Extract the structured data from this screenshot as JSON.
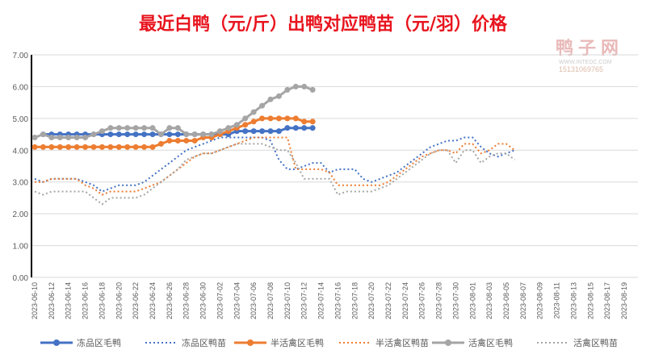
{
  "chart_data": {
    "type": "line",
    "title": "最近白鸭（元/斤）出鸭对应鸭苗（元/羽）价格",
    "watermark": {
      "name": "鸭子网",
      "site": "WWW.INTEDC.COM",
      "phone": "15131069765"
    },
    "ylim": [
      0,
      7
    ],
    "yticks": [
      "0.00",
      "1.00",
      "2.00",
      "3.00",
      "4.00",
      "5.00",
      "6.00",
      "7.00"
    ],
    "x_start": "2023-06-10",
    "x_days": 70,
    "xticks": [
      "2023-06-10",
      "2023-06-12",
      "2023-06-14",
      "2023-06-16",
      "2023-06-18",
      "2023-06-20",
      "2023-06-22",
      "2023-06-24",
      "2023-06-26",
      "2023-06-28",
      "2023-06-30",
      "2023-07-02",
      "2023-07-04",
      "2023-07-06",
      "2023-07-08",
      "2023-07-10",
      "2023-07-12",
      "2023-07-14",
      "2023-07-16",
      "2023-07-18",
      "2023-07-20",
      "2023-07-22",
      "2023-07-24",
      "2023-07-26",
      "2023-07-28",
      "2023-07-30",
      "2023-08-01",
      "2023-08-03",
      "2023-08-05",
      "2023-08-07",
      "2023-08-09",
      "2023-08-11",
      "2023-08-13",
      "2023-08-15",
      "2023-08-17",
      "2023-08-19"
    ],
    "grid": true,
    "legend": "bottom",
    "series": [
      {
        "name": "冻品区毛鸭",
        "color": "#4472c4",
        "style": "solid",
        "values": [
          null,
          4.5,
          4.5,
          4.5,
          4.5,
          4.5,
          4.5,
          4.5,
          4.5,
          4.5,
          4.5,
          4.5,
          4.5,
          4.5,
          4.5,
          4.5,
          4.5,
          4.5,
          4.5,
          4.5,
          4.5,
          4.5,
          4.5,
          4.5,
          4.6,
          4.6,
          4.6,
          4.6,
          4.6,
          4.6,
          4.7,
          4.7,
          4.7,
          4.7
        ]
      },
      {
        "name": "冻品区鸭苗",
        "color": "#4472c4",
        "style": "dot",
        "values": [
          3.1,
          3.0,
          3.1,
          3.1,
          3.1,
          3.1,
          3.0,
          2.9,
          2.7,
          2.8,
          2.9,
          2.9,
          2.9,
          3.0,
          3.2,
          3.4,
          3.6,
          3.8,
          4.0,
          4.1,
          4.2,
          4.3,
          4.4,
          4.4,
          4.4,
          4.4,
          4.4,
          4.4,
          4.3,
          3.7,
          3.4,
          3.4,
          3.5,
          3.6,
          3.6,
          3.3,
          3.4,
          3.4,
          3.4,
          3.1,
          3.0,
          3.1,
          3.2,
          3.3,
          3.5,
          3.7,
          3.9,
          4.1,
          4.2,
          4.3,
          4.3,
          4.4,
          4.4,
          4.1,
          3.9,
          3.8,
          3.9,
          4.0
        ]
      },
      {
        "name": "半活禽区毛鸭",
        "color": "#ed7d31",
        "style": "solid",
        "values": [
          4.1,
          4.1,
          4.1,
          4.1,
          4.1,
          4.1,
          4.1,
          4.1,
          4.1,
          4.1,
          4.1,
          4.1,
          4.1,
          4.1,
          4.1,
          4.2,
          4.3,
          4.3,
          4.3,
          4.3,
          4.4,
          4.4,
          4.5,
          4.6,
          4.7,
          4.8,
          4.9,
          5.0,
          5.0,
          5.0,
          5.0,
          5.0,
          4.9,
          4.9
        ]
      },
      {
        "name": "半活禽区鸭苗",
        "color": "#ed7d31",
        "style": "dot",
        "values": [
          3.0,
          3.0,
          3.1,
          3.1,
          3.1,
          3.1,
          2.9,
          2.8,
          2.6,
          2.7,
          2.7,
          2.7,
          2.7,
          2.8,
          2.9,
          3.0,
          3.2,
          3.4,
          3.6,
          3.8,
          3.9,
          3.9,
          4.0,
          4.1,
          4.2,
          4.3,
          4.4,
          4.4,
          4.4,
          4.4,
          4.4,
          3.4,
          3.4,
          3.4,
          3.4,
          3.3,
          2.9,
          2.9,
          2.9,
          2.9,
          2.9,
          2.9,
          3.0,
          3.2,
          3.4,
          3.6,
          3.8,
          3.9,
          4.0,
          4.0,
          3.9,
          4.2,
          4.2,
          3.9,
          4.0,
          4.2,
          4.2,
          4.0
        ]
      },
      {
        "name": "活禽区毛鸭",
        "color": "#a5a5a5",
        "style": "solid",
        "values": [
          4.4,
          4.5,
          4.4,
          4.4,
          4.4,
          4.4,
          4.4,
          4.5,
          4.6,
          4.7,
          4.7,
          4.7,
          4.7,
          4.7,
          4.7,
          4.5,
          4.7,
          4.7,
          4.5,
          4.5,
          4.5,
          4.5,
          4.6,
          4.7,
          4.8,
          5.0,
          5.2,
          5.4,
          5.6,
          5.7,
          5.9,
          6.0,
          6.0,
          5.9
        ]
      },
      {
        "name": "活禽区鸭苗",
        "color": "#a5a5a5",
        "style": "dot",
        "values": [
          2.7,
          2.6,
          2.7,
          2.7,
          2.7,
          2.7,
          2.7,
          2.5,
          2.3,
          2.5,
          2.5,
          2.5,
          2.5,
          2.6,
          2.8,
          3.0,
          3.2,
          3.4,
          3.7,
          3.8,
          3.9,
          3.9,
          4.0,
          4.1,
          4.2,
          4.2,
          4.2,
          4.2,
          4.1,
          4.0,
          4.0,
          3.6,
          3.1,
          3.1,
          3.1,
          3.1,
          2.6,
          2.7,
          2.7,
          2.7,
          2.7,
          2.8,
          2.9,
          3.1,
          3.3,
          3.5,
          3.7,
          3.9,
          4.0,
          4.0,
          3.6,
          4.0,
          4.0,
          3.6,
          3.8,
          3.9,
          3.9,
          3.7
        ]
      }
    ]
  }
}
